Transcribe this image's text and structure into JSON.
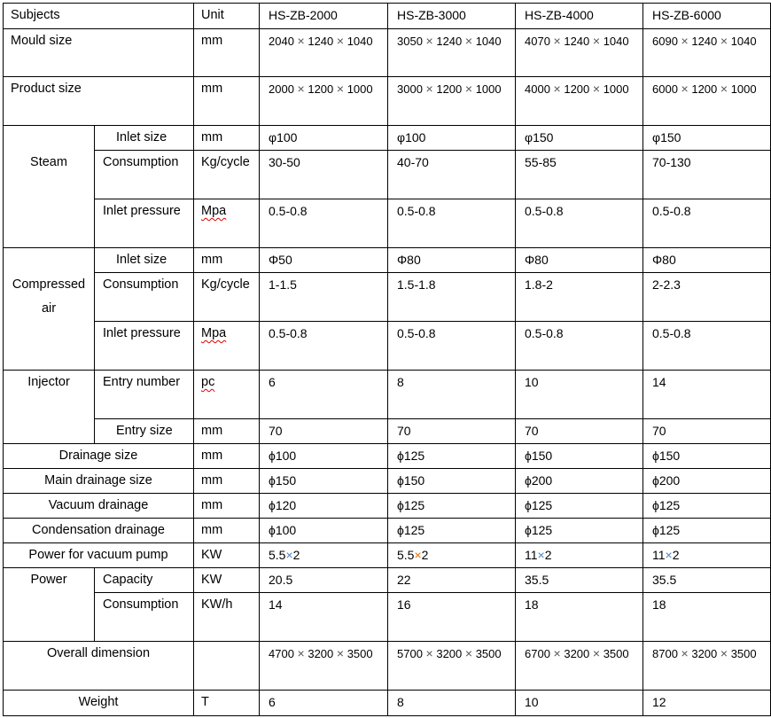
{
  "header": {
    "subjects": "Subjects",
    "unit": "Unit",
    "models": [
      "HS-ZB-2000",
      "HS-ZB-3000",
      "HS-ZB-4000",
      "HS-ZB-6000"
    ]
  },
  "cross_colors": {
    "default": "#555555",
    "blue": "#4f81bd",
    "orange": "#e46c0a"
  },
  "rows": [
    {
      "label": "Mould size",
      "unit": "mm",
      "values": [
        "2040 × 1240 × 1040",
        "3050 × 1240 × 1040",
        "4070 × 1240 × 1040",
        "6090 × 1240 × 1040"
      ]
    },
    {
      "label": "Product size",
      "unit": "mm",
      "values": [
        "2000 × 1200 × 1000",
        "3000 × 1200 × 1000",
        "4000 × 1200 × 1000",
        "6000 × 1200 × 1000"
      ]
    },
    {
      "group": "Steam",
      "label": "Inlet size",
      "unit": "mm",
      "values": [
        "φ100",
        "φ100",
        "φ150",
        "φ150"
      ]
    },
    {
      "group": "Steam",
      "label": "Consumption",
      "unit": "Kg/cycle",
      "values": [
        "30-50",
        "40-70",
        "55-85",
        "70-130"
      ]
    },
    {
      "group": "Steam",
      "label": "Inlet pressure",
      "unit": "Mpa",
      "values": [
        "0.5-0.8",
        "0.5-0.8",
        "0.5-0.8",
        "0.5-0.8"
      ]
    },
    {
      "group": "Compressed air",
      "label": "Inlet size",
      "unit": "mm",
      "values": [
        "Φ50",
        "Φ80",
        "Φ80",
        "Φ80"
      ]
    },
    {
      "group": "Compressed air",
      "label": "Consumption",
      "unit": "Kg/cycle",
      "values": [
        "1-1.5",
        "1.5-1.8",
        "1.8-2",
        "2-2.3"
      ]
    },
    {
      "group": "Compressed air",
      "label": "Inlet pressure",
      "unit": "Mpa",
      "values": [
        "0.5-0.8",
        "0.5-0.8",
        "0.5-0.8",
        "0.5-0.8"
      ]
    },
    {
      "group": "Injector",
      "label": "Entry number",
      "unit": "pc",
      "values": [
        "6",
        "8",
        "10",
        "14"
      ]
    },
    {
      "group": "Injector",
      "label": "Entry size",
      "unit": "mm",
      "values": [
        "70",
        "70",
        "70",
        "70"
      ]
    },
    {
      "label": "Drainage size",
      "unit": "mm",
      "values": [
        "ϕ100",
        "ϕ125",
        "ϕ150",
        "ϕ150"
      ]
    },
    {
      "label": "Main drainage size",
      "unit": "mm",
      "values": [
        "ϕ150",
        "ϕ150",
        "ϕ200",
        "ϕ200"
      ]
    },
    {
      "label": "Vacuum drainage",
      "unit": "mm",
      "values": [
        "ϕ120",
        "ϕ125",
        "ϕ125",
        "ϕ125"
      ]
    },
    {
      "label": "Condensation drainage",
      "unit": "mm",
      "values": [
        "ϕ100",
        "ϕ125",
        "ϕ125",
        "ϕ125"
      ]
    },
    {
      "label": "Power for vacuum pump",
      "unit": "KW",
      "values": [
        "5.5×2",
        "5.5×2",
        "11×2",
        "11×2"
      ],
      "cross_color_keys": [
        "blue",
        "orange",
        "blue",
        "blue"
      ]
    },
    {
      "group": "Power",
      "label": "Capacity",
      "unit": "KW",
      "values": [
        "20.5",
        "22",
        "35.5",
        "35.5"
      ]
    },
    {
      "group": "Power",
      "label": "Consumption",
      "unit": "KW/h",
      "values": [
        "14",
        "16",
        "18",
        "18"
      ]
    },
    {
      "label": "Overall dimension",
      "unit": "",
      "values": [
        "4700 × 3200 × 3500",
        "5700 × 3200 × 3500",
        "6700 × 3200 × 3500",
        "8700 × 3200 × 3500"
      ]
    },
    {
      "label": "Weight",
      "unit": "T",
      "values": [
        "6",
        "8",
        "10",
        "12"
      ]
    }
  ]
}
